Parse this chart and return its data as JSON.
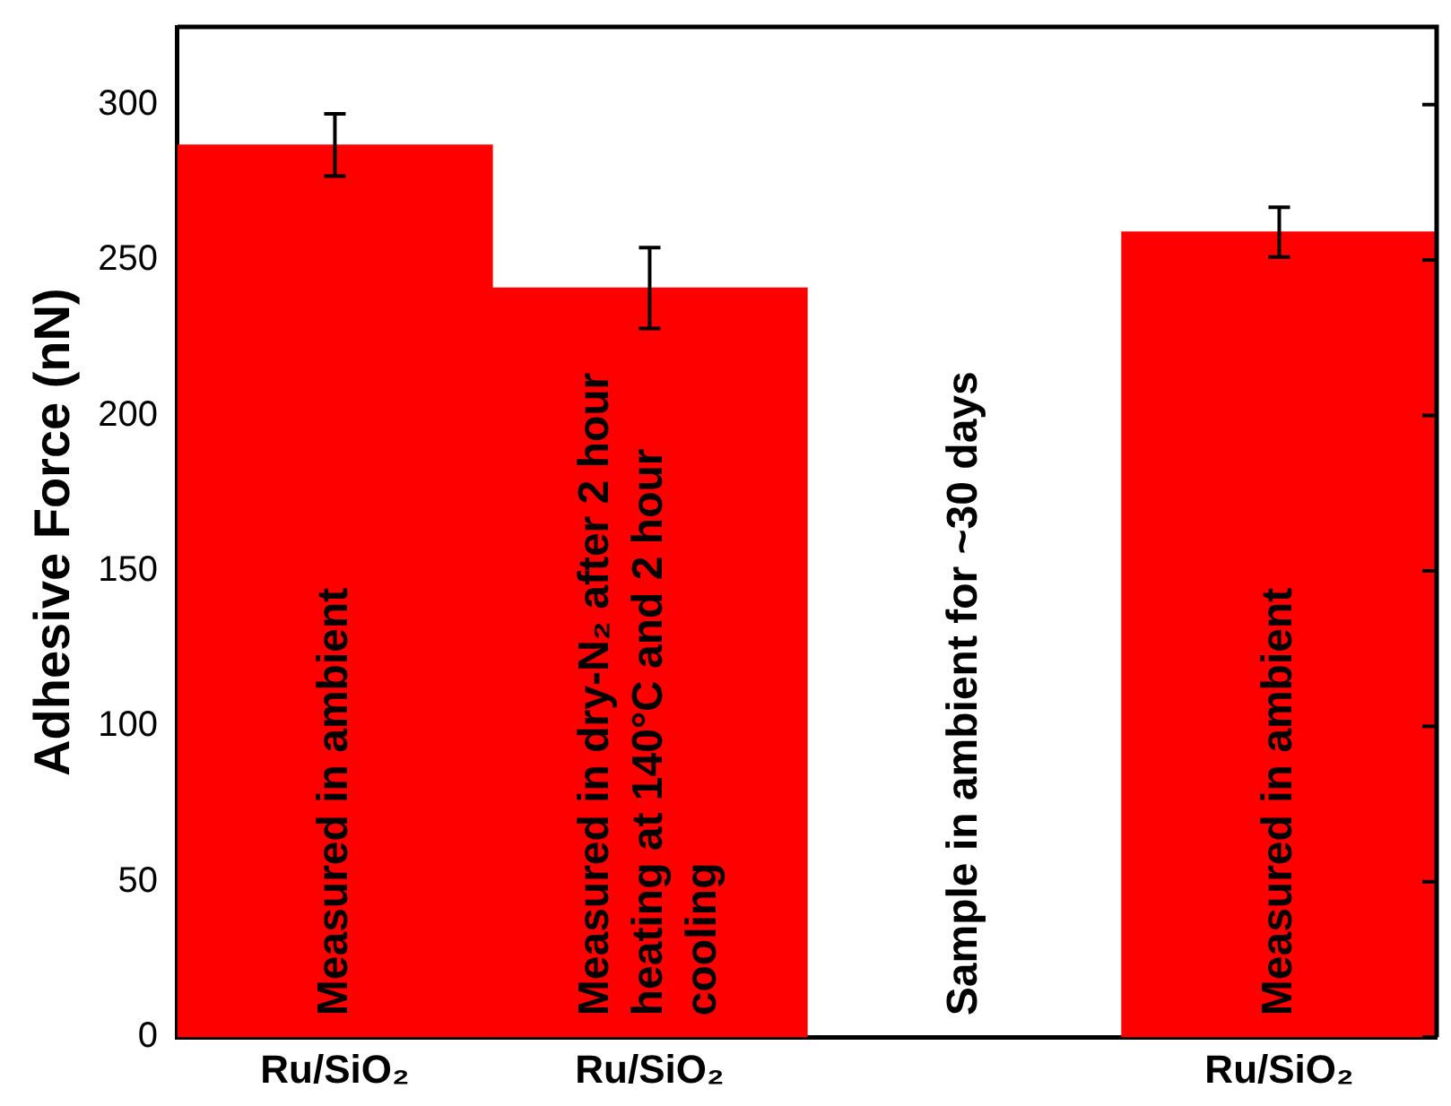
{
  "chart_data": {
    "type": "bar",
    "ylabel": "Adhesive Force (nN)",
    "categories": [
      "Ru/SiO₂",
      "Ru/SiO₂",
      null,
      "Ru/SiO₂"
    ],
    "values": [
      287,
      241,
      null,
      259
    ],
    "errors": [
      10,
      13,
      null,
      8
    ],
    "color": "#ff0000",
    "ylim": [
      0,
      325
    ],
    "yticks": [
      0,
      50,
      100,
      150,
      200,
      250,
      300
    ],
    "grid": false,
    "legend": false,
    "annotations": [
      "Measured in ambient",
      "Measured in dry-N₂ after 2 hour heating at 140°C and 2 hour cooling",
      "Sample in ambient for ~30 days",
      "Measured in ambient"
    ]
  }
}
